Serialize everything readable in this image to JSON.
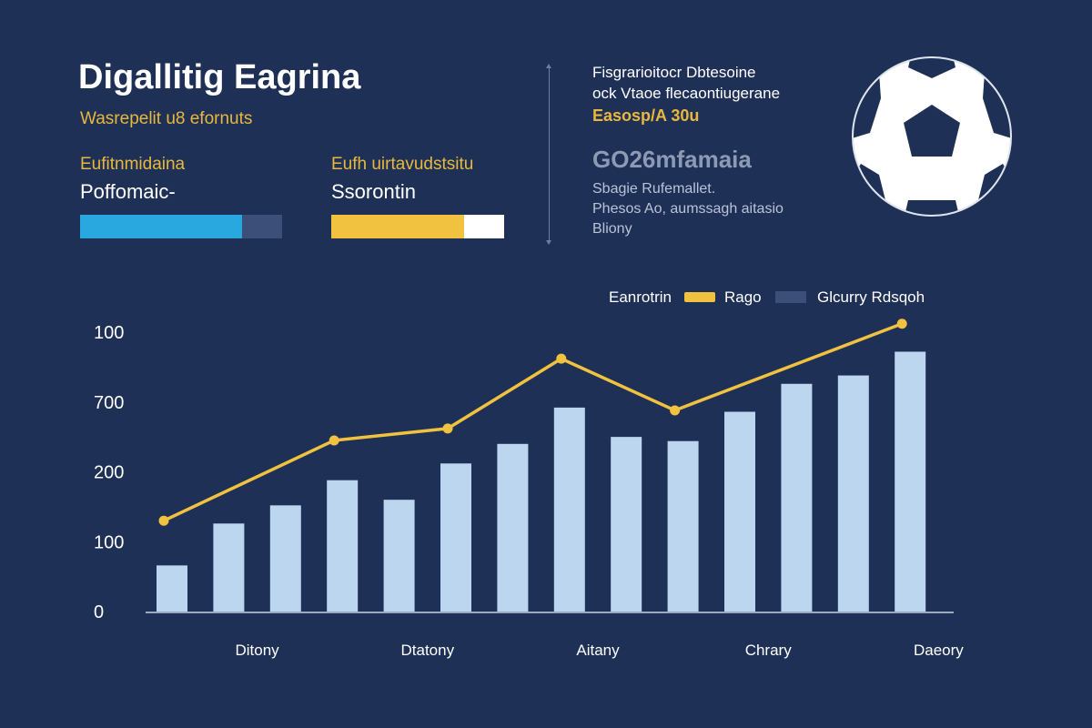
{
  "header": {
    "title": "Digallitig Eagrina",
    "subtitle": "Wasrepelit u8 efornuts"
  },
  "kpis": [
    {
      "label": "Eufitnmidaina",
      "value": "Poffomaic-",
      "progress": 0.8,
      "fill_color": "#29a8e0",
      "track_color": "#3b4f78"
    },
    {
      "label": "Eufh uirtavudstsitu",
      "value": "Ssorontin",
      "progress": 0.77,
      "fill_color": "#f0c23f",
      "track_color": "#ffffff"
    }
  ],
  "info": {
    "line1": "Fisgrarioitocr Dbtesoine",
    "line2": "ock Vtaoe flecaontiugerane",
    "highlight": "Easosp/A 30u",
    "big": "GO26mfamaia",
    "detail1": "Sbagie Rufemallet.",
    "detail2": "Phesos Ao, aumssagh aitasio",
    "detail3": "Bliony"
  },
  "colors": {
    "background": "#1f3056",
    "bar": "#bdd6ef",
    "line": "#f0c23f",
    "legend_box": "#3b4f78",
    "axis": "#c7d1e2",
    "accent": "#e8b83c"
  },
  "icons": {
    "ball": "soccer-ball-icon"
  },
  "chart_data": {
    "type": "bar",
    "legend": [
      {
        "label": "Eanrotrin",
        "kind": "line",
        "color": "#f0c23f"
      },
      {
        "label": "Rago",
        "kind": "box",
        "color": "#3b4f78"
      },
      {
        "label": "Glcurry  Rdsqoh",
        "kind": "text"
      }
    ],
    "y_tick_labels": [
      "0",
      "100",
      "200",
      "700",
      "100"
    ],
    "y_tick_positions": [
      0,
      1,
      2,
      3,
      4
    ],
    "ylim": [
      0,
      4
    ],
    "x_tick_labels": [
      "Ditony",
      "Dtatony",
      "Aitany",
      "Chrary",
      "Daeory"
    ],
    "x_tick_bar_positions": [
      1.5,
      4.5,
      7.5,
      10.5,
      13.5
    ],
    "bars": [
      0.66,
      1.26,
      1.52,
      1.88,
      1.6,
      2.12,
      2.4,
      2.92,
      2.5,
      2.44,
      2.86,
      3.26,
      3.38,
      3.72
    ],
    "line_series": {
      "name": "Eanrotrin",
      "points": [
        {
          "x": 0,
          "y": 1.3
        },
        {
          "x": 3,
          "y": 2.45
        },
        {
          "x": 5,
          "y": 2.62
        },
        {
          "x": 7,
          "y": 3.62
        },
        {
          "x": 9,
          "y": 2.88
        },
        {
          "x": 13,
          "y": 4.12
        }
      ]
    }
  }
}
